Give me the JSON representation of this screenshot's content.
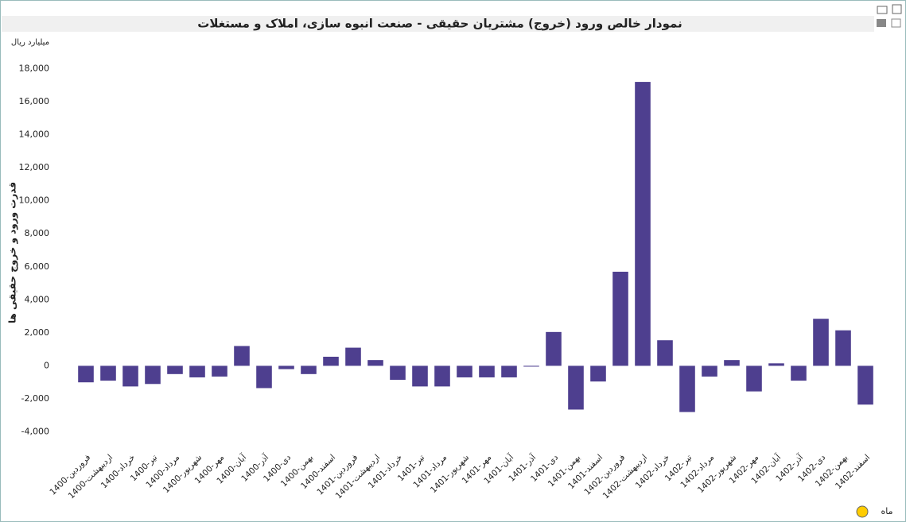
{
  "chart_data": {
    "type": "bar",
    "title": "نمودار خالص ورود (خروج) مشتریان حقیقی - صنعت انبوه سازی، املاک و مستغلات",
    "unit_label": "میلیارد ریال",
    "y_label": "قدرت ورود و خروج حقیقی ها",
    "x_label": "ماه",
    "color": "#4e3f8f",
    "categories": [
      "1400-فروردین",
      "1400-اردیبهشت",
      "1400-خرداد",
      "1400-تیر",
      "1400-مرداد",
      "1400-شهریور",
      "1400-مهر",
      "1400-آبان",
      "1400-آذر",
      "1400-دی",
      "1400-بهمن",
      "1400-اسفند",
      "1401-فروردین",
      "1401-اردیبهشت",
      "1401-خرداد",
      "1401-تیر",
      "1401-مرداد",
      "1401-شهریور",
      "1401-مهر",
      "1401-آبان",
      "1401-آذر",
      "1401-دی",
      "1401-بهمن",
      "1401-اسفند",
      "1402-فروردین",
      "1402-اردیبهشت",
      "1402-خرداد",
      "1402-تیر",
      "1402-مرداد",
      "1402-شهریور",
      "1402-مهر",
      "1402-آبان",
      "1402-آذر",
      "1402-دی",
      "1402-بهمن",
      "1402-اسفند"
    ],
    "values": [
      -1000,
      -900,
      -1250,
      -1100,
      -500,
      -700,
      -650,
      1200,
      -1350,
      -200,
      -500,
      550,
      1100,
      350,
      -850,
      -1250,
      -1250,
      -700,
      -700,
      -700,
      -50,
      2050,
      -2650,
      -950,
      5700,
      17200,
      1550,
      -2800,
      -650,
      350,
      -1550,
      150,
      -900,
      2850,
      2150,
      -2350
    ],
    "ylim": [
      -4600,
      18600
    ],
    "yticks": [
      {
        "value": -4000,
        "label": "-4,000"
      },
      {
        "value": -2000,
        "label": "-2,000"
      },
      0,
      {
        "value": 2000,
        "label": "2,000"
      },
      {
        "value": 4000,
        "label": "4,000"
      },
      {
        "value": 6000,
        "label": "6,000"
      },
      {
        "value": 8000,
        "label": "8,000"
      },
      {
        "value": 10000,
        "label": "10,000"
      },
      {
        "value": 12000,
        "label": "12,000"
      },
      {
        "value": 14000,
        "label": "14,000"
      },
      {
        "value": 16000,
        "label": "16,000"
      },
      {
        "value": 18000,
        "label": "18,000"
      }
    ]
  }
}
